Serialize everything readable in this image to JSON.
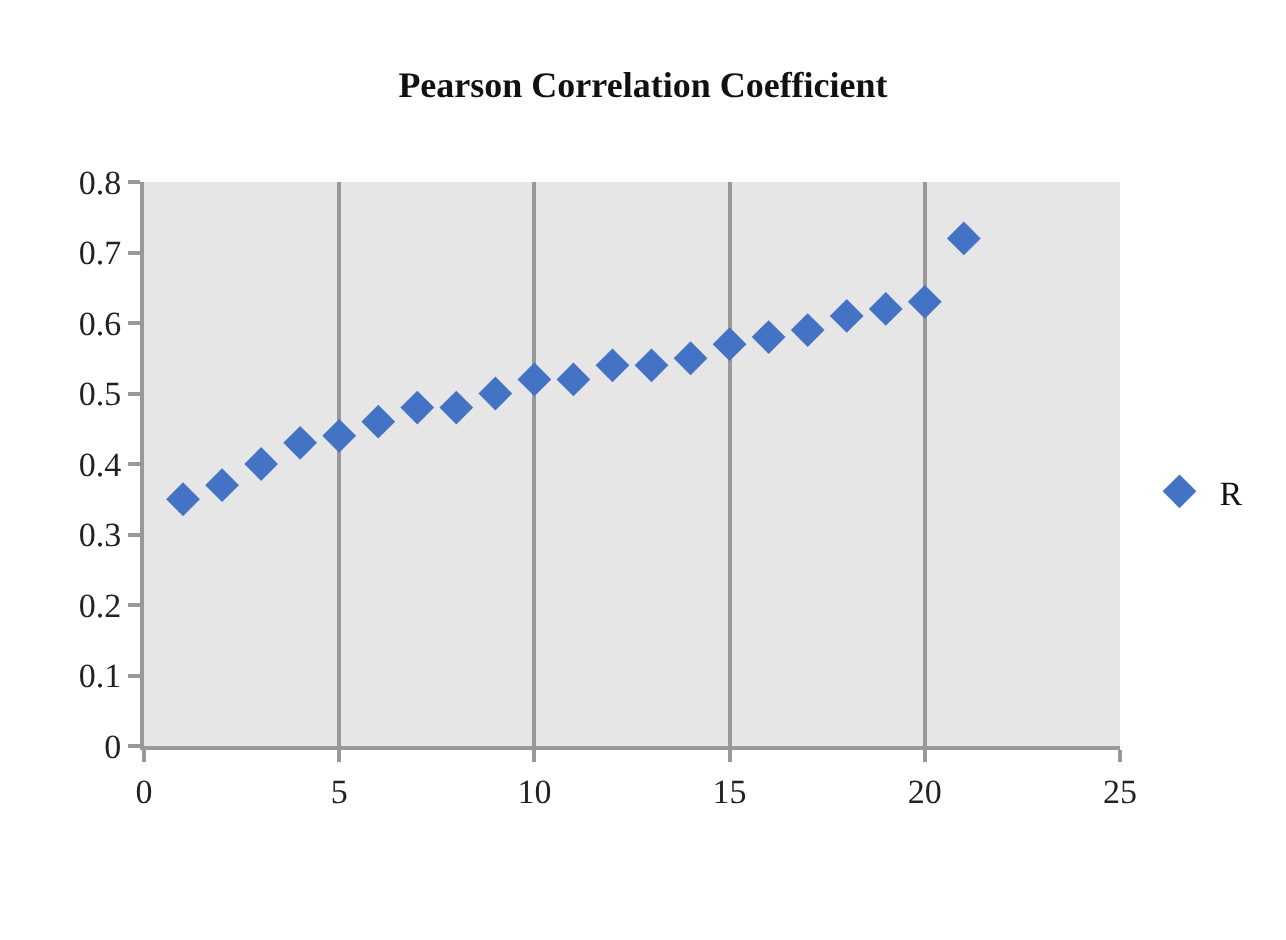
{
  "chart_data": {
    "type": "scatter",
    "title": "Pearson Correlation Coefficient",
    "x": [
      1,
      2,
      3,
      4,
      5,
      6,
      7,
      8,
      9,
      10,
      11,
      12,
      13,
      14,
      15,
      16,
      17,
      18,
      19,
      20,
      21
    ],
    "series": [
      {
        "name": "R",
        "color": "#4472c4",
        "values": [
          0.35,
          0.37,
          0.4,
          0.43,
          0.44,
          0.46,
          0.48,
          0.48,
          0.5,
          0.52,
          0.52,
          0.54,
          0.54,
          0.55,
          0.57,
          0.58,
          0.59,
          0.61,
          0.62,
          0.63,
          0.72
        ]
      }
    ],
    "xlim": [
      0,
      25
    ],
    "xticks": [
      0,
      5,
      10,
      15,
      20,
      25
    ],
    "ylim": [
      0,
      0.8
    ],
    "yticks": [
      {
        "value": 0,
        "label": "0"
      },
      {
        "value": 0.1,
        "label": "0.1"
      },
      {
        "value": 0.2,
        "label": "0.2"
      },
      {
        "value": 0.3,
        "label": "0.3"
      },
      {
        "value": 0.4,
        "label": "0.4"
      },
      {
        "value": 0.5,
        "label": "0.5"
      },
      {
        "value": 0.6,
        "label": "0.6"
      },
      {
        "value": 0.7,
        "label": "0.7"
      },
      {
        "value": 0.8,
        "label": "0.8"
      }
    ],
    "grid": "x",
    "legend": "right",
    "marker": "diamond"
  }
}
